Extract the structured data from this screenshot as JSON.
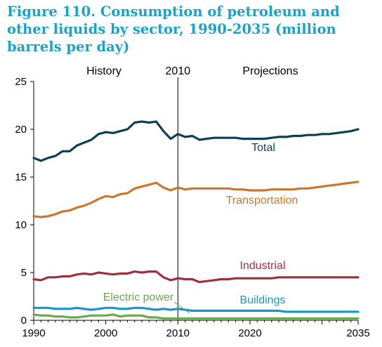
{
  "title": "Figure 110. Consumption of petroleum and other liquids by sector, 1990-2035 (million barrels per day)",
  "chart_data": {
    "type": "line",
    "title": "Figure 110. Consumption of petroleum and other liquids by sector, 1990-2035 (million barrels per day)",
    "xlabel": "",
    "ylabel": "",
    "xlim": [
      1990,
      2035
    ],
    "ylim": [
      0,
      25
    ],
    "x_ticks": [
      "1990",
      "2000",
      "2010",
      "2020",
      "2035"
    ],
    "y_ticks": [
      "0",
      "5",
      "10",
      "15",
      "20",
      "25"
    ],
    "grid": false,
    "divider_year": 2010,
    "annotations": {
      "history": "History",
      "divider": "2010",
      "projections": "Projections"
    },
    "x": [
      1990,
      1991,
      1992,
      1993,
      1994,
      1995,
      1996,
      1997,
      1998,
      1999,
      2000,
      2001,
      2002,
      2003,
      2004,
      2005,
      2006,
      2007,
      2008,
      2009,
      2010,
      2011,
      2012,
      2013,
      2014,
      2015,
      2016,
      2017,
      2018,
      2019,
      2020,
      2021,
      2022,
      2023,
      2024,
      2025,
      2026,
      2027,
      2028,
      2029,
      2030,
      2031,
      2032,
      2033,
      2034,
      2035
    ],
    "series": [
      {
        "name": "Total",
        "color": "#0f3d56",
        "values": [
          17.0,
          16.7,
          17.0,
          17.2,
          17.7,
          17.7,
          18.3,
          18.6,
          18.9,
          19.5,
          19.7,
          19.6,
          19.8,
          20.0,
          20.7,
          20.8,
          20.7,
          20.8,
          19.8,
          19.0,
          19.5,
          19.2,
          19.3,
          18.9,
          19.0,
          19.1,
          19.1,
          19.1,
          19.1,
          19.0,
          19.0,
          19.0,
          19.0,
          19.1,
          19.2,
          19.2,
          19.3,
          19.3,
          19.4,
          19.4,
          19.5,
          19.5,
          19.6,
          19.7,
          19.8,
          20.0
        ]
      },
      {
        "name": "Transportation",
        "color": "#c9762e",
        "values": [
          10.9,
          10.8,
          10.9,
          11.1,
          11.4,
          11.5,
          11.8,
          12.0,
          12.3,
          12.7,
          13.0,
          12.9,
          13.2,
          13.3,
          13.8,
          14.0,
          14.2,
          14.4,
          13.9,
          13.6,
          13.9,
          13.7,
          13.8,
          13.8,
          13.8,
          13.8,
          13.8,
          13.8,
          13.7,
          13.7,
          13.6,
          13.6,
          13.6,
          13.7,
          13.7,
          13.7,
          13.7,
          13.8,
          13.8,
          13.9,
          14.0,
          14.1,
          14.2,
          14.3,
          14.4,
          14.5
        ]
      },
      {
        "name": "Industrial",
        "color": "#9e2f3f",
        "values": [
          4.3,
          4.2,
          4.5,
          4.5,
          4.6,
          4.6,
          4.8,
          4.9,
          4.8,
          5.0,
          4.9,
          4.8,
          4.9,
          4.9,
          5.1,
          5.0,
          5.1,
          5.1,
          4.5,
          4.2,
          4.4,
          4.3,
          4.3,
          4.0,
          4.1,
          4.2,
          4.3,
          4.3,
          4.4,
          4.4,
          4.4,
          4.4,
          4.4,
          4.4,
          4.5,
          4.5,
          4.5,
          4.5,
          4.5,
          4.5,
          4.5,
          4.5,
          4.5,
          4.5,
          4.5,
          4.5
        ]
      },
      {
        "name": "Buildings",
        "color": "#1b93cc",
        "values": [
          1.3,
          1.3,
          1.3,
          1.2,
          1.2,
          1.2,
          1.3,
          1.2,
          1.1,
          1.2,
          1.3,
          1.3,
          1.2,
          1.2,
          1.3,
          1.3,
          1.2,
          1.1,
          1.2,
          1.1,
          1.2,
          1.1,
          1.0,
          1.0,
          1.0,
          1.0,
          1.0,
          1.0,
          1.0,
          1.0,
          1.0,
          1.0,
          1.0,
          1.0,
          1.0,
          0.9,
          0.9,
          0.9,
          0.9,
          0.9,
          0.9,
          0.9,
          0.9,
          0.9,
          0.9,
          0.9
        ]
      },
      {
        "name": "Electric power",
        "color": "#6aa84f",
        "values": [
          0.6,
          0.5,
          0.5,
          0.4,
          0.4,
          0.3,
          0.3,
          0.4,
          0.5,
          0.5,
          0.5,
          0.6,
          0.4,
          0.5,
          0.5,
          0.5,
          0.3,
          0.3,
          0.2,
          0.2,
          0.2,
          0.2,
          0.2,
          0.2,
          0.2,
          0.2,
          0.2,
          0.2,
          0.2,
          0.2,
          0.2,
          0.2,
          0.2,
          0.2,
          0.2,
          0.2,
          0.2,
          0.2,
          0.2,
          0.2,
          0.2,
          0.2,
          0.2,
          0.2,
          0.2,
          0.2
        ]
      }
    ]
  }
}
